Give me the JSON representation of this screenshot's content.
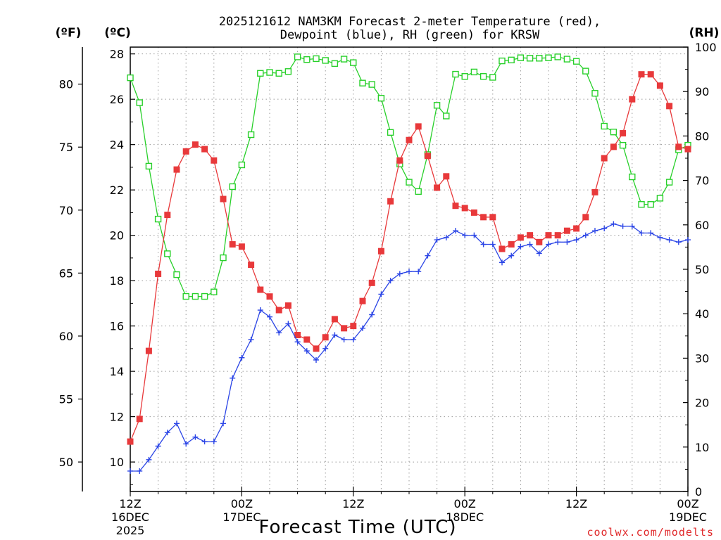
{
  "title_line1": "2025121612 NAM3KM Forecast 2-meter Temperature (red),",
  "title_line2": "Dewpoint (blue), RH (green) for KRSW",
  "unit_f": "(ºF)",
  "unit_c": "(ºC)",
  "unit_rh": "(RH)",
  "credit": "coolwx.com/modelts",
  "colors": {
    "temp": "#e8393b",
    "dewpoint": "#2b45e6",
    "rh": "#28d02a",
    "grid": "#9a9a9a"
  },
  "chart_data": {
    "type": "line",
    "title": "2025121612 NAM3KM Forecast 2-meter Temperature (red), Dewpoint (blue), RH (green) for KRSW",
    "xlabel": "Forecast Time (UTC)",
    "x_unit": "forecast hour (hours after 12Z 16 Dec 2025)",
    "xlim": [
      0,
      60
    ],
    "x_ticks": [
      {
        "x": 0,
        "line1": "12Z",
        "line2": "16DEC",
        "line3": "2025"
      },
      {
        "x": 12,
        "line1": "00Z",
        "line2": "17DEC",
        "line3": ""
      },
      {
        "x": 24,
        "line1": "12Z",
        "line2": "",
        "line3": ""
      },
      {
        "x": 36,
        "line1": "00Z",
        "line2": "18DEC",
        "line3": ""
      },
      {
        "x": 48,
        "line1": "12Z",
        "line2": "",
        "line3": ""
      },
      {
        "x": 60,
        "line1": "00Z",
        "line2": "19DEC",
        "line3": ""
      }
    ],
    "y_left_celsius": {
      "label": "(ºC)",
      "range": [
        8.7,
        28.3
      ],
      "ticks": [
        10,
        12,
        14,
        16,
        18,
        20,
        22,
        24,
        26,
        28
      ]
    },
    "y_left_fahrenheit": {
      "label": "(ºF)",
      "ticks": [
        50,
        55,
        60,
        65,
        70,
        75,
        80
      ]
    },
    "y_right_rh": {
      "label": "(RH)",
      "range": [
        0,
        100
      ],
      "ticks": [
        0,
        10,
        20,
        30,
        40,
        50,
        60,
        70,
        80,
        90,
        100
      ]
    },
    "hours": [
      0,
      1,
      2,
      3,
      4,
      5,
      6,
      7,
      8,
      9,
      10,
      11,
      12,
      13,
      14,
      15,
      16,
      17,
      18,
      19,
      20,
      21,
      22,
      23,
      24,
      25,
      26,
      27,
      28,
      29,
      30,
      31,
      32,
      33,
      34,
      35,
      36,
      37,
      38,
      39,
      40,
      41,
      42,
      43,
      44,
      45,
      46,
      47,
      48,
      49,
      50,
      51,
      52,
      53,
      54,
      55,
      56,
      57,
      58,
      59,
      60
    ],
    "series": [
      {
        "name": "2-meter Temperature",
        "unit": "°C",
        "color": "red",
        "marker": "filled-square",
        "values": [
          10.9,
          11.9,
          14.9,
          18.3,
          20.9,
          22.9,
          23.7,
          24.0,
          23.8,
          23.3,
          21.6,
          19.6,
          19.5,
          18.7,
          17.6,
          17.3,
          16.7,
          16.9,
          15.6,
          15.4,
          15.0,
          15.5,
          16.3,
          15.9,
          16.0,
          17.1,
          17.9,
          19.3,
          21.5,
          23.3,
          24.2,
          24.8,
          23.5,
          22.1,
          22.6,
          21.3,
          21.2,
          21.0,
          20.8,
          20.8,
          19.4,
          19.6,
          19.9,
          20.0,
          19.7,
          20.0,
          20.0,
          20.2,
          20.3,
          20.8,
          21.9,
          23.4,
          23.9,
          24.5,
          26.0,
          27.1,
          27.1,
          26.6,
          25.7,
          23.9,
          23.8
        ]
      },
      {
        "name": "Dewpoint",
        "unit": "°C",
        "color": "blue",
        "marker": "plus",
        "values": [
          9.6,
          9.6,
          10.1,
          10.7,
          11.3,
          11.7,
          10.8,
          11.1,
          10.9,
          10.9,
          11.7,
          13.7,
          14.6,
          15.4,
          16.7,
          16.4,
          15.7,
          16.1,
          15.3,
          14.9,
          14.5,
          15.0,
          15.6,
          15.4,
          15.4,
          15.9,
          16.5,
          17.4,
          18.0,
          18.3,
          18.4,
          18.4,
          19.1,
          19.8,
          19.9,
          20.2,
          20.0,
          20.0,
          19.6,
          19.6,
          18.8,
          19.1,
          19.5,
          19.6,
          19.2,
          19.6,
          19.7,
          19.7,
          19.8,
          20.0,
          20.2,
          20.3,
          20.5,
          20.4,
          20.4,
          20.1,
          20.1,
          19.9,
          19.8,
          19.7,
          19.8
        ]
      },
      {
        "name": "RH",
        "unit": "%",
        "color": "green",
        "marker": "open-square",
        "values": [
          93.1,
          87.5,
          73.2,
          61.3,
          53.5,
          48.8,
          43.9,
          43.9,
          43.9,
          44.9,
          52.6,
          68.6,
          73.5,
          80.3,
          94.1,
          94.3,
          94.1,
          94.5,
          97.8,
          97.2,
          97.4,
          97.0,
          96.3,
          97.3,
          96.5,
          91.9,
          91.6,
          88.5,
          80.8,
          73.7,
          69.6,
          67.5,
          75.8,
          86.9,
          84.5,
          93.9,
          93.4,
          94.4,
          93.4,
          93.2,
          96.9,
          97.1,
          97.6,
          97.5,
          97.5,
          97.6,
          97.8,
          97.3,
          96.8,
          94.6,
          89.6,
          82.2,
          80.9,
          77.9,
          70.8,
          64.6,
          64.6,
          66.0,
          69.6,
          76.9,
          77.9
        ]
      }
    ]
  }
}
